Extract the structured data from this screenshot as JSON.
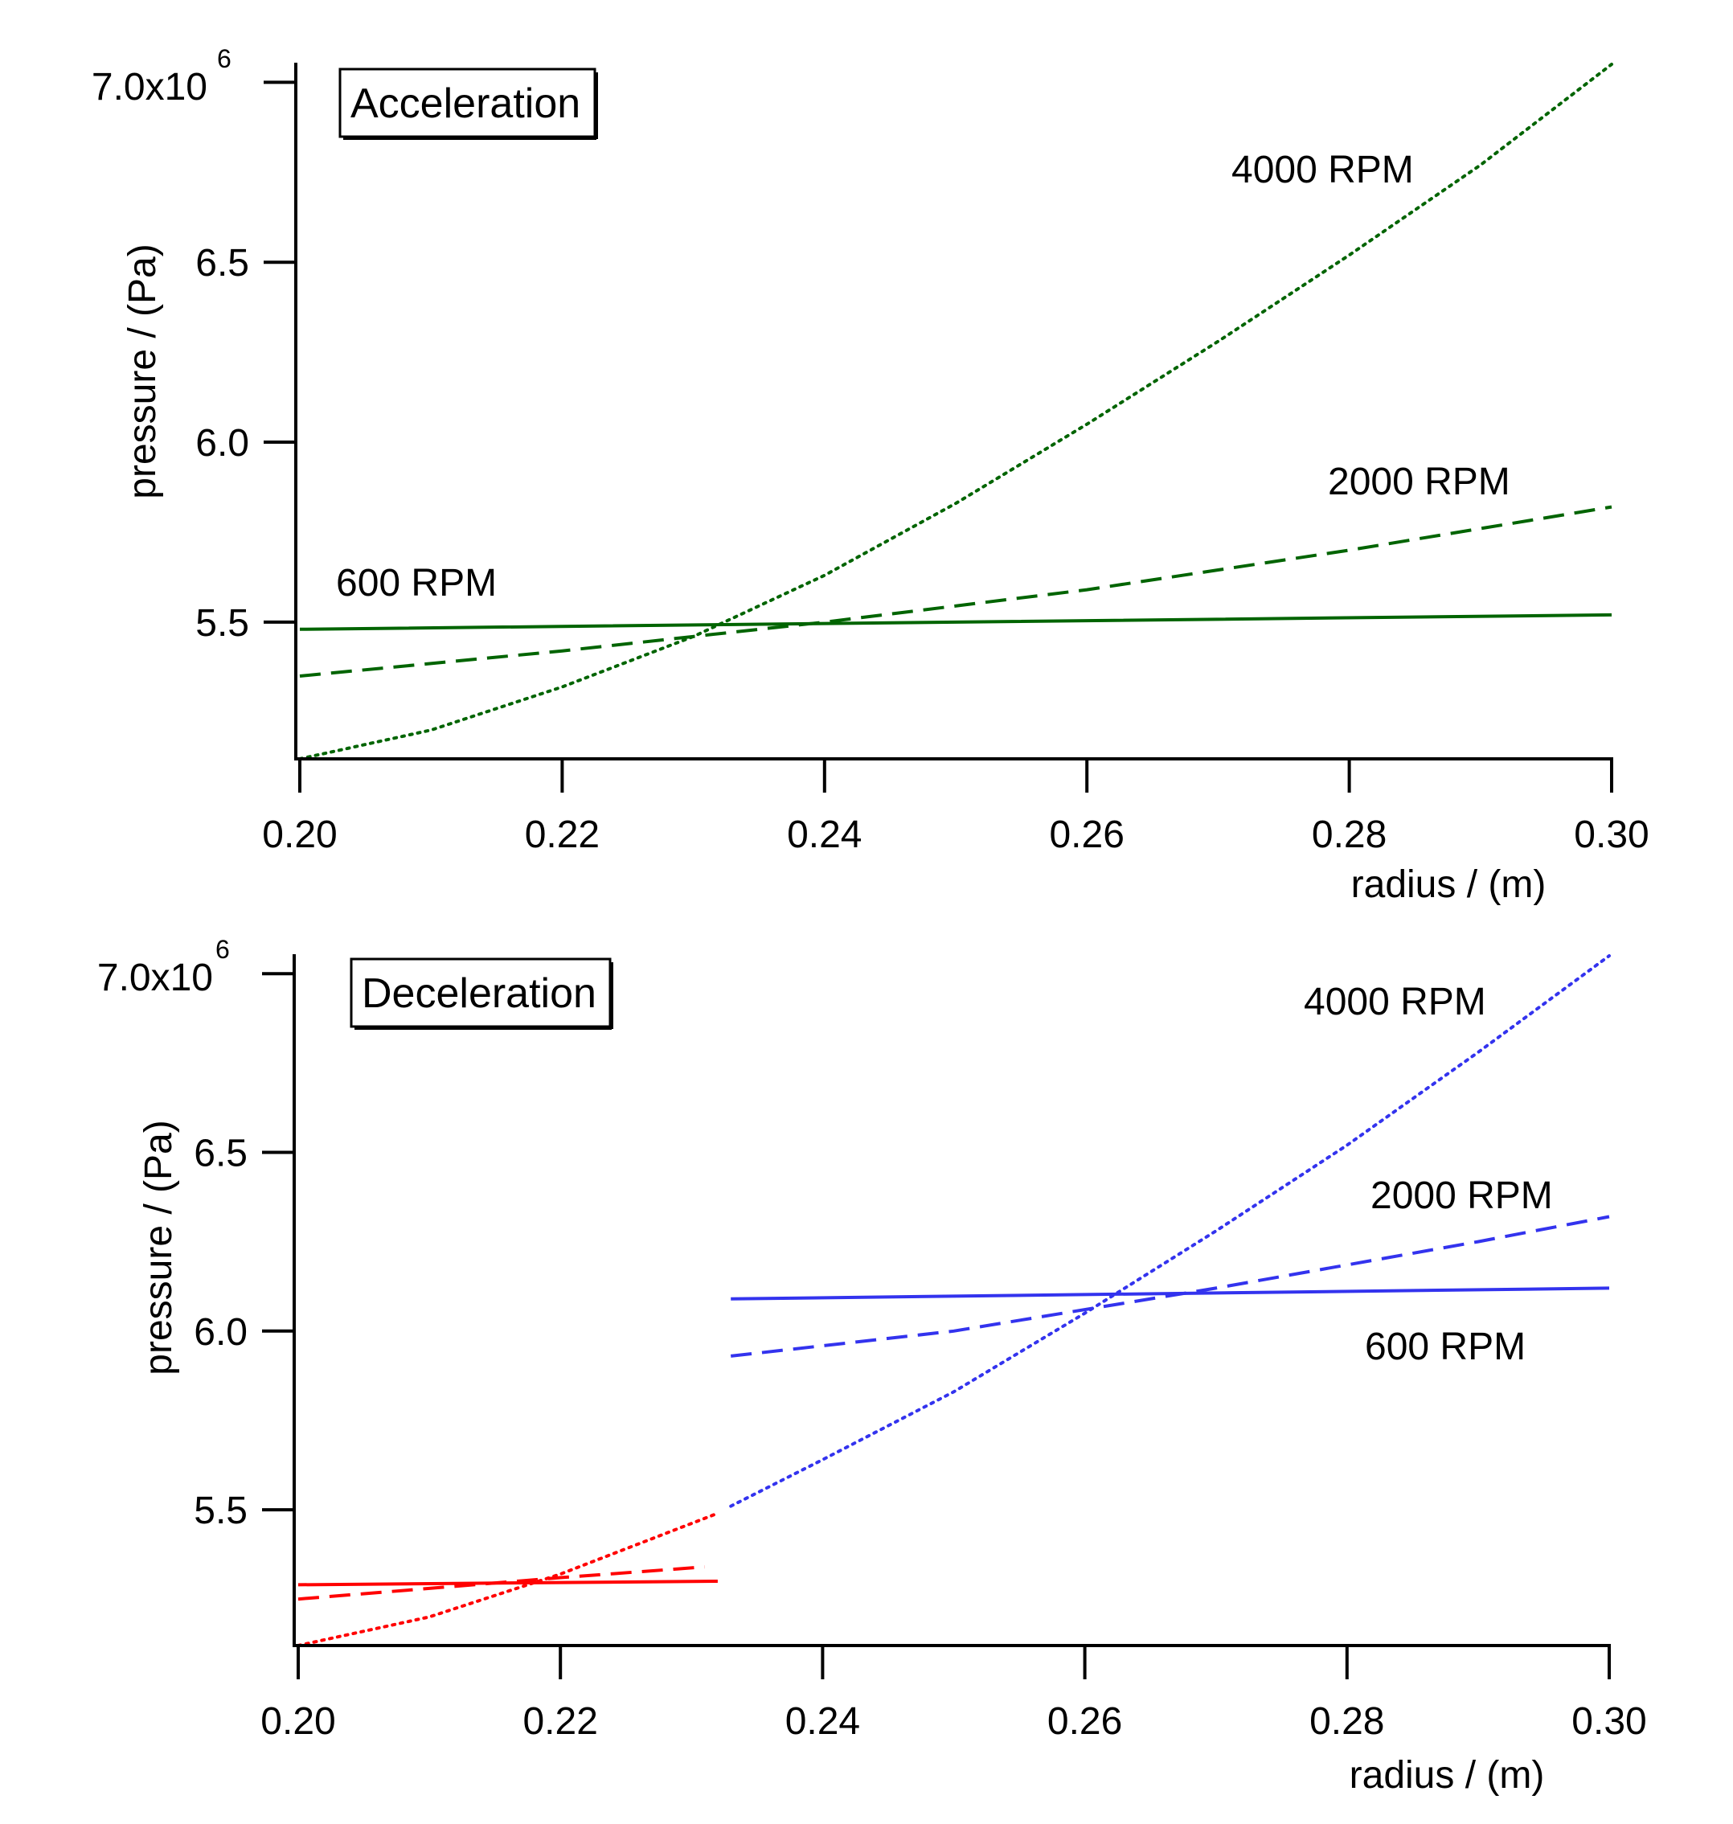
{
  "chart_data": [
    {
      "type": "line",
      "title": "Acceleration",
      "xlabel": "radius / (m)",
      "ylabel": "pressure / (Pa)",
      "xlim": [
        0.2,
        0.3
      ],
      "ylim": [
        5.12,
        7.05
      ],
      "y_multiplier": "x10",
      "y_multiplier_exponent": "6",
      "x_ticks": [
        "0.20",
        "0.22",
        "0.24",
        "0.26",
        "0.28",
        "0.30"
      ],
      "x_tick_values": [
        0.2,
        0.22,
        0.24,
        0.26,
        0.28,
        0.3
      ],
      "y_ticks": [
        "7.0",
        "6.5",
        "6.0",
        "5.5"
      ],
      "y_tick_values": [
        7.0,
        6.5,
        6.0,
        5.5
      ],
      "grid": false,
      "series": [
        {
          "label": "600 RPM",
          "color": "#006400",
          "style": "solid",
          "x": [
            0.2,
            0.25,
            0.3
          ],
          "y": [
            5.48,
            5.5,
            5.52
          ]
        },
        {
          "label": "2000 RPM",
          "color": "#006400",
          "style": "dashed",
          "x": [
            0.2,
            0.22,
            0.24,
            0.26,
            0.28,
            0.3
          ],
          "y": [
            5.35,
            5.42,
            5.5,
            5.59,
            5.7,
            5.82
          ]
        },
        {
          "label": "4000 RPM",
          "color": "#006400",
          "style": "dotted",
          "x": [
            0.2,
            0.21,
            0.22,
            0.23,
            0.24,
            0.25,
            0.26,
            0.27,
            0.28,
            0.29,
            0.3
          ],
          "y": [
            5.12,
            5.2,
            5.32,
            5.46,
            5.63,
            5.83,
            6.05,
            6.28,
            6.52,
            6.77,
            7.05
          ]
        }
      ]
    },
    {
      "type": "line",
      "title": "Deceleration",
      "xlabel": "radius / (m)",
      "ylabel": "pressure / (Pa)",
      "xlim": [
        0.2,
        0.3
      ],
      "ylim": [
        5.12,
        7.05
      ],
      "y_multiplier": "x10",
      "y_multiplier_exponent": "6",
      "x_ticks": [
        "0.20",
        "0.22",
        "0.24",
        "0.26",
        "0.28",
        "0.30"
      ],
      "x_tick_values": [
        0.2,
        0.22,
        0.24,
        0.26,
        0.28,
        0.3
      ],
      "y_ticks": [
        "7.0",
        "6.5",
        "6.0",
        "5.5"
      ],
      "y_tick_values": [
        7.0,
        6.5,
        6.0,
        5.5
      ],
      "grid": false,
      "series": [
        {
          "label": "",
          "color": "#ff0000",
          "style": "solid",
          "x": [
            0.2,
            0.232
          ],
          "y": [
            5.29,
            5.3
          ]
        },
        {
          "label": "",
          "color": "#ff0000",
          "style": "dashed",
          "x": [
            0.2,
            0.21,
            0.22,
            0.231
          ],
          "y": [
            5.25,
            5.28,
            5.31,
            5.34
          ]
        },
        {
          "label": "",
          "color": "#ff0000",
          "style": "dotted",
          "x": [
            0.2,
            0.21,
            0.22,
            0.232
          ],
          "y": [
            5.12,
            5.2,
            5.32,
            5.49
          ]
        },
        {
          "label": "600 RPM",
          "color": "#3333ee",
          "style": "solid",
          "x": [
            0.233,
            0.3
          ],
          "y": [
            6.09,
            6.12
          ]
        },
        {
          "label": "2000 RPM",
          "color": "#3333ee",
          "style": "dashed",
          "x": [
            0.233,
            0.25,
            0.27,
            0.29,
            0.3
          ],
          "y": [
            5.93,
            6.0,
            6.12,
            6.25,
            6.32
          ]
        },
        {
          "label": "4000 RPM",
          "color": "#3333ee",
          "style": "dotted",
          "x": [
            0.233,
            0.24,
            0.25,
            0.26,
            0.27,
            0.28,
            0.29,
            0.3
          ],
          "y": [
            5.51,
            5.64,
            5.83,
            6.05,
            6.28,
            6.52,
            6.78,
            7.05
          ]
        }
      ]
    }
  ],
  "series_labels": [
    [
      "600 RPM",
      "2000 RPM",
      "4000 RPM"
    ],
    [
      "600 RPM",
      "2000 RPM",
      "4000 RPM"
    ]
  ]
}
